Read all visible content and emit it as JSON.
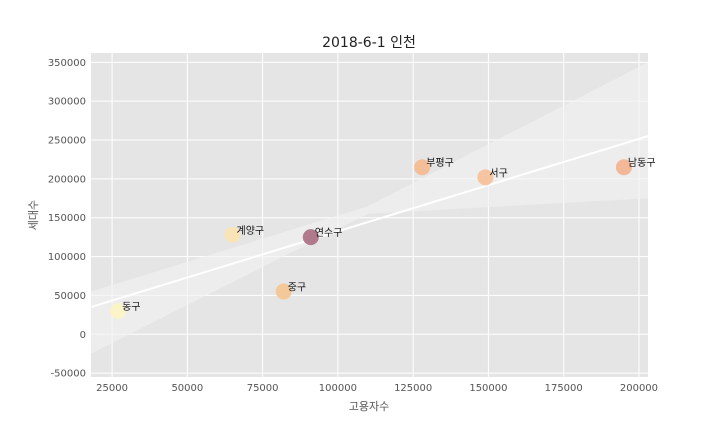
{
  "chart_data": {
    "type": "scatter",
    "title": "2018-6-1 인천",
    "xlabel": "고용자수",
    "ylabel": "세대수",
    "xlim": [
      18000,
      203000
    ],
    "ylim": [
      -55000,
      362000
    ],
    "x_ticks": [
      25000,
      50000,
      75000,
      100000,
      125000,
      150000,
      175000,
      200000
    ],
    "y_ticks": [
      -50000,
      0,
      50000,
      100000,
      150000,
      200000,
      250000,
      300000,
      350000
    ],
    "grid": true,
    "regression": {
      "x": [
        18000,
        203000
      ],
      "y": [
        35000,
        255000
      ]
    },
    "confidence_band": {
      "upper": [
        [
          18000,
          55000
        ],
        [
          110000,
          165000
        ],
        [
          203000,
          350000
        ]
      ],
      "lower": [
        [
          18000,
          -25000
        ],
        [
          110000,
          155000
        ],
        [
          203000,
          175000
        ]
      ]
    },
    "points": [
      {
        "label": "동구",
        "x": 27000,
        "y": 30000,
        "color": "#fbf4c8"
      },
      {
        "label": "계양구",
        "x": 65000,
        "y": 128000,
        "color": "#f9e4b8"
      },
      {
        "label": "중구",
        "x": 82000,
        "y": 55000,
        "color": "#f4c99a"
      },
      {
        "label": "연수구",
        "x": 91000,
        "y": 125000,
        "color": "#b07a8c"
      },
      {
        "label": "부평구",
        "x": 128000,
        "y": 215000,
        "color": "#f4be98"
      },
      {
        "label": "서구",
        "x": 149000,
        "y": 202000,
        "color": "#f6c4a0"
      },
      {
        "label": "남동구",
        "x": 195000,
        "y": 215000,
        "color": "#f2b898"
      }
    ]
  }
}
